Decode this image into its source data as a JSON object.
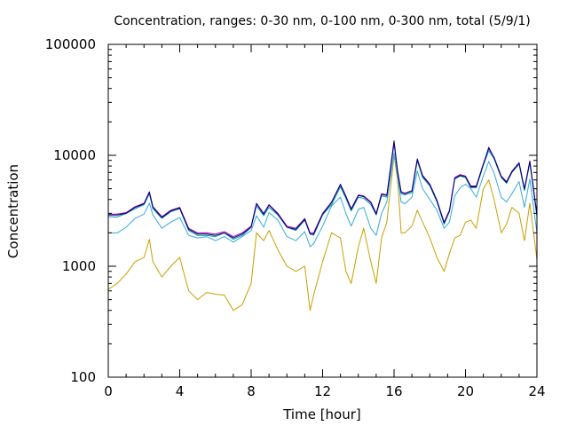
{
  "chart_data": {
    "type": "line",
    "title": "Concentration, ranges: 0-30 nm, 0-100 nm, 0-300 nm, total (5/9/1)",
    "xlabel": "Time [hour]",
    "ylabel": "Concentration",
    "xlim": [
      0,
      24
    ],
    "ylim": [
      100,
      100000
    ],
    "yscale": "log",
    "grid": false,
    "legend": "none",
    "x_ticks": [
      0,
      4,
      8,
      12,
      16,
      20,
      24
    ],
    "x_tick_labels": [
      "0",
      "4",
      "8",
      "12",
      "16",
      "20",
      "24"
    ],
    "y_ticks": [
      100,
      1000,
      10000,
      100000
    ],
    "y_tick_labels": [
      "100",
      "1000",
      "10000",
      "100000"
    ],
    "x": [
      0,
      0.5,
      1,
      1.5,
      2,
      2.3,
      2.5,
      3,
      3.5,
      4,
      4.5,
      5,
      5.5,
      6,
      6.5,
      7,
      7.5,
      8,
      8.3,
      8.7,
      9,
      9.5,
      10,
      10.5,
      11,
      11.3,
      11.5,
      12,
      12.5,
      13,
      13.3,
      13.6,
      14,
      14.3,
      14.7,
      15,
      15.3,
      15.6,
      16,
      16.2,
      16.4,
      16.6,
      17,
      17.3,
      17.6,
      18,
      18.4,
      18.8,
      19.1,
      19.4,
      19.7,
      20,
      20.3,
      20.6,
      21,
      21.3,
      21.6,
      22,
      22.3,
      22.6,
      23,
      23.3,
      23.6,
      24
    ],
    "series": [
      {
        "color": "#c8a000",
        "values": [
          620,
          700,
          850,
          1100,
          1200,
          1750,
          1100,
          800,
          1000,
          1200,
          600,
          500,
          580,
          560,
          550,
          400,
          450,
          700,
          2000,
          1700,
          2100,
          1400,
          1000,
          900,
          1000,
          400,
          550,
          1100,
          2000,
          1800,
          900,
          700,
          1500,
          2200,
          1100,
          700,
          1800,
          2500,
          10000,
          6000,
          2000,
          2000,
          2300,
          3200,
          2500,
          1800,
          1200,
          900,
          1300,
          1800,
          1900,
          2500,
          2600,
          2200,
          5000,
          6000,
          4000,
          2000,
          2400,
          3400,
          3000,
          1700,
          3700,
          1150
        ]
      },
      {
        "color": "#33aadd",
        "values": [
          2000,
          2000,
          2250,
          2700,
          2950,
          3700,
          2900,
          2200,
          2500,
          2750,
          1900,
          1800,
          1850,
          1700,
          1850,
          1650,
          1850,
          2100,
          2850,
          2250,
          3050,
          2600,
          1850,
          1700,
          2050,
          1500,
          1600,
          2300,
          3500,
          4200,
          3000,
          2300,
          3250,
          3400,
          2200,
          1900,
          3000,
          3800,
          10500,
          6500,
          3800,
          3650,
          4200,
          7200,
          5000,
          4000,
          3200,
          2200,
          2500,
          4300,
          5100,
          5500,
          5000,
          4200,
          6500,
          8800,
          6900,
          4200,
          3800,
          4500,
          5800,
          3400,
          6100,
          2000
        ]
      },
      {
        "color": "#00a0a0",
        "values": [
          2800,
          2780,
          3000,
          3300,
          3600,
          4500,
          3300,
          2700,
          3100,
          3300,
          2100,
          1900,
          1900,
          1850,
          2000,
          1750,
          1900,
          2250,
          3500,
          2850,
          3400,
          2900,
          2250,
          2100,
          2600,
          1950,
          1900,
          2900,
          3600,
          5200,
          4100,
          3150,
          4200,
          4100,
          3600,
          2900,
          4300,
          4200,
          12700,
          7000,
          4500,
          4400,
          4600,
          8900,
          6300,
          5300,
          3800,
          2400,
          3100,
          6100,
          6500,
          6300,
          5100,
          5100,
          8100,
          11000,
          9300,
          6300,
          5600,
          7000,
          8300,
          4800,
          8500,
          2800
        ]
      },
      {
        "color": "#aa00aa",
        "values": [
          2950,
          2950,
          3050,
          3450,
          3700,
          4700,
          3450,
          2800,
          3200,
          3400,
          2200,
          2000,
          2000,
          1950,
          2050,
          1850,
          2000,
          2300,
          3700,
          3000,
          3600,
          3000,
          2300,
          2200,
          2700,
          2000,
          2000,
          3000,
          3800,
          5500,
          4300,
          3300,
          4400,
          4300,
          3800,
          3000,
          4500,
          4400,
          13000,
          7200,
          4700,
          4550,
          4800,
          9300,
          6600,
          5500,
          3950,
          2500,
          3200,
          6300,
          6700,
          6500,
          5300,
          5300,
          8400,
          11500,
          9600,
          6500,
          5800,
          7200,
          8600,
          5000,
          8900,
          2950
        ]
      },
      {
        "color": "#000080",
        "values": [
          2900,
          2900,
          3000,
          3400,
          3650,
          4650,
          3400,
          2750,
          3150,
          3350,
          2150,
          1950,
          1950,
          1900,
          2000,
          1800,
          1950,
          2250,
          3650,
          2950,
          3550,
          2950,
          2250,
          2150,
          2650,
          1950,
          1950,
          2950,
          3750,
          5450,
          4250,
          3250,
          4350,
          4250,
          3750,
          2950,
          4450,
          4350,
          13500,
          7100,
          4650,
          4500,
          4750,
          9200,
          6500,
          5450,
          3900,
          2450,
          3150,
          6200,
          6600,
          6400,
          5200,
          5200,
          8300,
          11800,
          9500,
          6400,
          5700,
          7100,
          8500,
          4950,
          8800,
          2900
        ]
      }
    ]
  }
}
